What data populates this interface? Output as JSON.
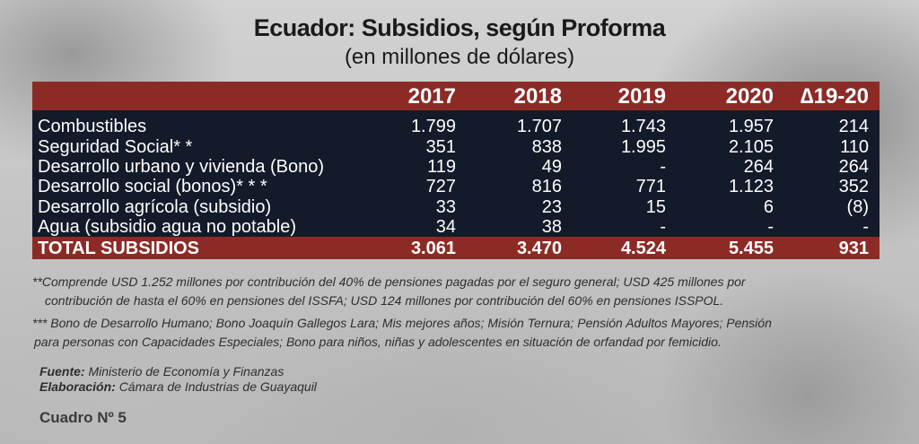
{
  "title": "Ecuador: Subsidios, según Proforma",
  "subtitle": "(en millones de dólares)",
  "colors": {
    "header_red": "#8c2b26",
    "table_navy": "#131a2a",
    "text_white": "#ffffff"
  },
  "table": {
    "headers": [
      "",
      "2017",
      "2018",
      "2019",
      "2020",
      "∆19-20"
    ],
    "rows": [
      [
        "Combustibles",
        "1.799",
        "1.707",
        "1.743",
        "1.957",
        "214"
      ],
      [
        "Seguridad Social* *",
        "351",
        "838",
        "1.995",
        "2.105",
        "110"
      ],
      [
        "Desarrollo urbano y vivienda (Bono)",
        "119",
        "49",
        "-",
        "264",
        "264"
      ],
      [
        "Desarrollo social (bonos)* * *",
        "727",
        "816",
        "771",
        "1.123",
        "352"
      ],
      [
        "Desarrollo agrícola (subsidio)",
        "33",
        "23",
        "15",
        "6",
        "(8)"
      ],
      [
        "Agua (subsidio agua no potable)",
        "34",
        "38",
        "-",
        "-",
        "-"
      ]
    ],
    "total": [
      "TOTAL SUBSIDIOS",
      "3.061",
      "3.470",
      "4.524",
      "5.455",
      "931"
    ]
  },
  "notes": {
    "note1_line1": "**Comprende USD 1.252 millones por contribución del 40% de pensiones pagadas por el seguro general; USD 425 millones por",
    "note1_line2": "contribución de hasta el 60% en pensiones del ISSFA; USD 124 millones por contribución del 60% en pensiones ISSPOL.",
    "note2_line1": "*** Bono de Desarrollo Humano; Bono Joaquín Gallegos Lara; Mis mejores años; Misión Ternura; Pensión Adultos Mayores; Pensión",
    "note2_line2": "para personas con Capacidades Especiales; Bono para niños, niñas y adolescentes en situación de orfandad por femicidio."
  },
  "source": {
    "fuente_label": "Fuente:",
    "fuente_value": "Ministerio de Economía y Finanzas",
    "elaboracion_label": "Elaboración:",
    "elaboracion_value": "Cámara de Industrias de Guayaquil"
  },
  "cuadro": "Cuadro Nº 5"
}
